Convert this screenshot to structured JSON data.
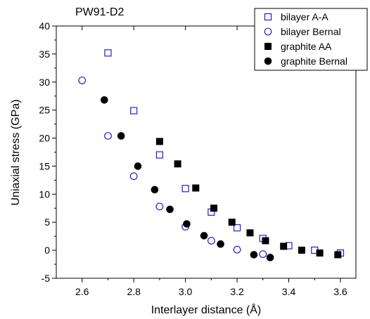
{
  "chart_data": {
    "type": "scatter",
    "title": "PW91-D2",
    "xlabel": "Interlayer distance (Å)",
    "ylabel": "Uniaxial stress (GPa)",
    "xlim": [
      2.5,
      3.66
    ],
    "ylim": [
      -5,
      40
    ],
    "xticks": [
      "2.6",
      "2.8",
      "3.0",
      "3.2",
      "3.4",
      "3.6"
    ],
    "yticks": [
      "-5",
      "0",
      "5",
      "10",
      "15",
      "20",
      "25",
      "30",
      "35",
      "40"
    ],
    "grid": false,
    "legend_position": "top-right",
    "series": [
      {
        "name": "bilayer A-A",
        "marker": "open-square",
        "color": "#1f1fd6",
        "x": [
          2.7,
          2.8,
          2.9,
          3.0,
          3.1,
          3.2,
          3.3,
          3.4,
          3.5,
          3.6
        ],
        "y": [
          35.2,
          24.9,
          17.0,
          11.0,
          6.8,
          4.0,
          2.1,
          0.8,
          0.0,
          -0.5
        ]
      },
      {
        "name": "bilayer Bernal",
        "marker": "open-circle",
        "color": "#1f1fd6",
        "x": [
          2.6,
          2.7,
          2.8,
          2.9,
          3.0,
          3.1,
          3.2,
          3.3
        ],
        "y": [
          30.3,
          20.4,
          13.2,
          7.8,
          4.2,
          1.7,
          0.1,
          -0.7
        ]
      },
      {
        "name": "graphite AA",
        "marker": "filled-square",
        "color": "#000000",
        "x": [
          2.9,
          2.97,
          3.04,
          3.11,
          3.18,
          3.25,
          3.31,
          3.38,
          3.45,
          3.52,
          3.59
        ],
        "y": [
          19.4,
          15.4,
          11.1,
          7.5,
          5.0,
          3.1,
          1.7,
          0.7,
          0.0,
          -0.5,
          -0.8
        ]
      },
      {
        "name": "graphite Bernal",
        "marker": "filled-circle",
        "color": "#000000",
        "x": [
          2.686,
          2.751,
          2.816,
          2.881,
          2.94,
          3.005,
          3.072,
          3.136,
          3.265,
          3.328
        ],
        "y": [
          26.8,
          20.4,
          15.0,
          10.8,
          7.3,
          4.7,
          2.6,
          1.1,
          -0.8,
          -1.3
        ]
      }
    ]
  }
}
